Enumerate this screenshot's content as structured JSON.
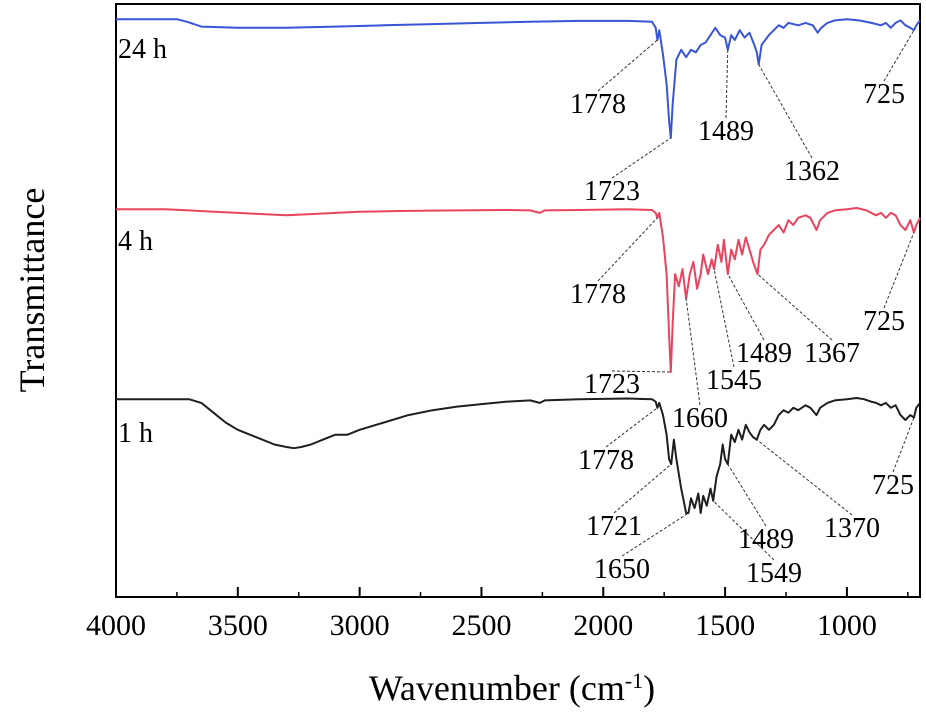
{
  "chart_data": {
    "type": "line",
    "xlabel": "Wavenumber (cm",
    "xlabel_sup": "-1",
    "xlabel_end": ")",
    "ylabel": "Transmittance",
    "xlim": [
      4000,
      700
    ],
    "x_reversed": true,
    "xticks": [
      4000,
      3500,
      3000,
      2500,
      2000,
      1500,
      1000
    ],
    "xtick_labels": [
      "4000",
      "3500",
      "3000",
      "2500",
      "2000",
      "1500",
      "1000"
    ],
    "yticks_shown": false,
    "grid": false,
    "series": [
      {
        "name": "24 h",
        "color": "#3a55d6",
        "points": [
          [
            4000,
            0.965
          ],
          [
            3750,
            0.965
          ],
          [
            3710,
            0.955
          ],
          [
            3650,
            0.935
          ],
          [
            3500,
            0.93
          ],
          [
            3300,
            0.93
          ],
          [
            3100,
            0.935
          ],
          [
            2900,
            0.94
          ],
          [
            2700,
            0.945
          ],
          [
            2500,
            0.95
          ],
          [
            2300,
            0.955
          ],
          [
            2100,
            0.958
          ],
          [
            1900,
            0.958
          ],
          [
            1800,
            0.955
          ],
          [
            1785,
            0.93
          ],
          [
            1778,
            0.88
          ],
          [
            1770,
            0.92
          ],
          [
            1755,
            0.82
          ],
          [
            1740,
            0.7
          ],
          [
            1730,
            0.55
          ],
          [
            1723,
            0.48
          ],
          [
            1715,
            0.62
          ],
          [
            1700,
            0.8
          ],
          [
            1680,
            0.84
          ],
          [
            1660,
            0.81
          ],
          [
            1640,
            0.84
          ],
          [
            1620,
            0.83
          ],
          [
            1600,
            0.86
          ],
          [
            1580,
            0.87
          ],
          [
            1560,
            0.9
          ],
          [
            1540,
            0.93
          ],
          [
            1520,
            0.9
          ],
          [
            1500,
            0.89
          ],
          [
            1489,
            0.84
          ],
          [
            1475,
            0.9
          ],
          [
            1460,
            0.88
          ],
          [
            1440,
            0.92
          ],
          [
            1420,
            0.89
          ],
          [
            1400,
            0.91
          ],
          [
            1380,
            0.86
          ],
          [
            1370,
            0.83
          ],
          [
            1362,
            0.78
          ],
          [
            1350,
            0.86
          ],
          [
            1320,
            0.9
          ],
          [
            1300,
            0.92
          ],
          [
            1280,
            0.94
          ],
          [
            1260,
            0.93
          ],
          [
            1240,
            0.95
          ],
          [
            1200,
            0.94
          ],
          [
            1170,
            0.95
          ],
          [
            1140,
            0.94
          ],
          [
            1120,
            0.91
          ],
          [
            1105,
            0.93
          ],
          [
            1080,
            0.95
          ],
          [
            1050,
            0.96
          ],
          [
            1000,
            0.965
          ],
          [
            950,
            0.96
          ],
          [
            900,
            0.95
          ],
          [
            860,
            0.94
          ],
          [
            840,
            0.95
          ],
          [
            820,
            0.93
          ],
          [
            800,
            0.95
          ],
          [
            780,
            0.96
          ],
          [
            760,
            0.94
          ],
          [
            740,
            0.93
          ],
          [
            725,
            0.92
          ],
          [
            715,
            0.94
          ],
          [
            700,
            0.96
          ]
        ]
      },
      {
        "name": "4 h",
        "color": "#e8445f",
        "points": [
          [
            4000,
            0.965
          ],
          [
            3800,
            0.965
          ],
          [
            3700,
            0.96
          ],
          [
            3600,
            0.955
          ],
          [
            3500,
            0.95
          ],
          [
            3400,
            0.945
          ],
          [
            3300,
            0.94
          ],
          [
            3200,
            0.945
          ],
          [
            3100,
            0.95
          ],
          [
            3000,
            0.955
          ],
          [
            2800,
            0.958
          ],
          [
            2600,
            0.96
          ],
          [
            2400,
            0.962
          ],
          [
            2300,
            0.96
          ],
          [
            2260,
            0.95
          ],
          [
            2240,
            0.96
          ],
          [
            2100,
            0.962
          ],
          [
            1900,
            0.965
          ],
          [
            1800,
            0.962
          ],
          [
            1785,
            0.95
          ],
          [
            1778,
            0.93
          ],
          [
            1770,
            0.95
          ],
          [
            1755,
            0.85
          ],
          [
            1740,
            0.7
          ],
          [
            1730,
            0.45
          ],
          [
            1723,
            0.3
          ],
          [
            1715,
            0.5
          ],
          [
            1705,
            0.7
          ],
          [
            1690,
            0.65
          ],
          [
            1675,
            0.72
          ],
          [
            1660,
            0.6
          ],
          [
            1645,
            0.7
          ],
          [
            1630,
            0.75
          ],
          [
            1615,
            0.64
          ],
          [
            1600,
            0.7
          ],
          [
            1590,
            0.78
          ],
          [
            1570,
            0.7
          ],
          [
            1555,
            0.76
          ],
          [
            1545,
            0.72
          ],
          [
            1530,
            0.82
          ],
          [
            1515,
            0.75
          ],
          [
            1505,
            0.84
          ],
          [
            1489,
            0.7
          ],
          [
            1475,
            0.8
          ],
          [
            1460,
            0.76
          ],
          [
            1445,
            0.84
          ],
          [
            1430,
            0.78
          ],
          [
            1415,
            0.85
          ],
          [
            1400,
            0.8
          ],
          [
            1385,
            0.75
          ],
          [
            1367,
            0.7
          ],
          [
            1355,
            0.8
          ],
          [
            1340,
            0.82
          ],
          [
            1320,
            0.86
          ],
          [
            1300,
            0.88
          ],
          [
            1280,
            0.9
          ],
          [
            1260,
            0.87
          ],
          [
            1240,
            0.92
          ],
          [
            1220,
            0.9
          ],
          [
            1200,
            0.93
          ],
          [
            1170,
            0.94
          ],
          [
            1150,
            0.93
          ],
          [
            1125,
            0.88
          ],
          [
            1110,
            0.92
          ],
          [
            1080,
            0.95
          ],
          [
            1050,
            0.96
          ],
          [
            1000,
            0.965
          ],
          [
            960,
            0.97
          ],
          [
            920,
            0.96
          ],
          [
            900,
            0.95
          ],
          [
            880,
            0.94
          ],
          [
            860,
            0.95
          ],
          [
            840,
            0.93
          ],
          [
            820,
            0.95
          ],
          [
            800,
            0.94
          ],
          [
            780,
            0.9
          ],
          [
            760,
            0.88
          ],
          [
            740,
            0.92
          ],
          [
            725,
            0.87
          ],
          [
            715,
            0.9
          ],
          [
            700,
            0.93
          ]
        ]
      },
      {
        "name": "1 h",
        "color": "#1f1f1f",
        "points": [
          [
            4000,
            0.965
          ],
          [
            3800,
            0.965
          ],
          [
            3700,
            0.965
          ],
          [
            3650,
            0.95
          ],
          [
            3600,
            0.91
          ],
          [
            3550,
            0.87
          ],
          [
            3500,
            0.84
          ],
          [
            3450,
            0.82
          ],
          [
            3400,
            0.8
          ],
          [
            3350,
            0.78
          ],
          [
            3300,
            0.77
          ],
          [
            3270,
            0.765
          ],
          [
            3240,
            0.77
          ],
          [
            3200,
            0.78
          ],
          [
            3150,
            0.8
          ],
          [
            3100,
            0.82
          ],
          [
            3050,
            0.82
          ],
          [
            3000,
            0.84
          ],
          [
            2900,
            0.87
          ],
          [
            2800,
            0.9
          ],
          [
            2700,
            0.92
          ],
          [
            2600,
            0.935
          ],
          [
            2500,
            0.945
          ],
          [
            2400,
            0.955
          ],
          [
            2300,
            0.96
          ],
          [
            2260,
            0.95
          ],
          [
            2240,
            0.96
          ],
          [
            2100,
            0.965
          ],
          [
            1900,
            0.968
          ],
          [
            1800,
            0.965
          ],
          [
            1785,
            0.955
          ],
          [
            1778,
            0.93
          ],
          [
            1770,
            0.95
          ],
          [
            1755,
            0.9
          ],
          [
            1740,
            0.82
          ],
          [
            1730,
            0.72
          ],
          [
            1721,
            0.7
          ],
          [
            1710,
            0.8
          ],
          [
            1700,
            0.72
          ],
          [
            1690,
            0.66
          ],
          [
            1680,
            0.6
          ],
          [
            1670,
            0.55
          ],
          [
            1660,
            0.5
          ],
          [
            1650,
            0.5
          ],
          [
            1640,
            0.56
          ],
          [
            1625,
            0.52
          ],
          [
            1610,
            0.58
          ],
          [
            1600,
            0.5
          ],
          [
            1590,
            0.57
          ],
          [
            1575,
            0.53
          ],
          [
            1560,
            0.6
          ],
          [
            1549,
            0.55
          ],
          [
            1535,
            0.65
          ],
          [
            1520,
            0.7
          ],
          [
            1510,
            0.78
          ],
          [
            1500,
            0.72
          ],
          [
            1489,
            0.7
          ],
          [
            1475,
            0.82
          ],
          [
            1460,
            0.79
          ],
          [
            1445,
            0.84
          ],
          [
            1430,
            0.8
          ],
          [
            1415,
            0.86
          ],
          [
            1400,
            0.83
          ],
          [
            1385,
            0.81
          ],
          [
            1370,
            0.8
          ],
          [
            1355,
            0.84
          ],
          [
            1340,
            0.86
          ],
          [
            1320,
            0.84
          ],
          [
            1300,
            0.86
          ],
          [
            1280,
            0.9
          ],
          [
            1260,
            0.92
          ],
          [
            1240,
            0.91
          ],
          [
            1220,
            0.93
          ],
          [
            1200,
            0.92
          ],
          [
            1170,
            0.94
          ],
          [
            1150,
            0.93
          ],
          [
            1125,
            0.9
          ],
          [
            1110,
            0.93
          ],
          [
            1080,
            0.95
          ],
          [
            1050,
            0.96
          ],
          [
            1000,
            0.965
          ],
          [
            960,
            0.97
          ],
          [
            930,
            0.965
          ],
          [
            900,
            0.955
          ],
          [
            880,
            0.95
          ],
          [
            860,
            0.94
          ],
          [
            840,
            0.95
          ],
          [
            820,
            0.93
          ],
          [
            800,
            0.94
          ],
          [
            780,
            0.9
          ],
          [
            760,
            0.88
          ],
          [
            740,
            0.9
          ],
          [
            725,
            0.89
          ],
          [
            715,
            0.93
          ],
          [
            700,
            0.95
          ]
        ]
      }
    ],
    "annotations": [
      {
        "text": "1778",
        "series": "24 h",
        "at": 1778
      },
      {
        "text": "1723",
        "series": "24 h",
        "at": 1723
      },
      {
        "text": "1489",
        "series": "24 h",
        "at": 1489
      },
      {
        "text": "1362",
        "series": "24 h",
        "at": 1362
      },
      {
        "text": "725",
        "series": "24 h",
        "at": 725
      },
      {
        "text": "1778",
        "series": "4 h",
        "at": 1778
      },
      {
        "text": "1723",
        "series": "4 h",
        "at": 1723
      },
      {
        "text": "1660",
        "series": "4 h",
        "at": 1660
      },
      {
        "text": "1545",
        "series": "4 h",
        "at": 1545
      },
      {
        "text": "1489",
        "series": "4 h",
        "at": 1489
      },
      {
        "text": "1367",
        "series": "4 h",
        "at": 1367
      },
      {
        "text": "725",
        "series": "4 h",
        "at": 725
      },
      {
        "text": "1778",
        "series": "1 h",
        "at": 1778
      },
      {
        "text": "1721",
        "series": "1 h",
        "at": 1721
      },
      {
        "text": "1650",
        "series": "1 h",
        "at": 1650
      },
      {
        "text": "1549",
        "series": "1 h",
        "at": 1549
      },
      {
        "text": "1489",
        "series": "1 h",
        "at": 1489
      },
      {
        "text": "1370",
        "series": "1 h",
        "at": 1370
      },
      {
        "text": "725",
        "series": "1 h",
        "at": 725
      }
    ]
  }
}
